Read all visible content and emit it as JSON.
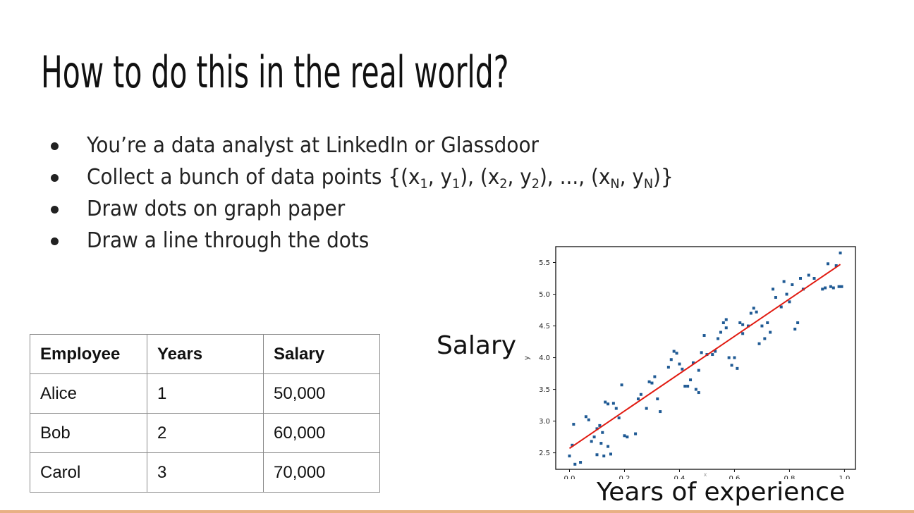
{
  "title": "How to do this in the real world?",
  "bullets": [
    {
      "text": "You’re a data analyst at LinkedIn or Glassdoor"
    },
    {
      "prefix": "Collect a bunch of data points {(x",
      "s1": "1",
      "m1": ", y",
      "s2": "1",
      "m2": "), (x",
      "s3": "2",
      "m3": ", y",
      "s4": "2",
      "m4": "), ..., (x",
      "s5": "N",
      "m5": ", y",
      "s6": "N",
      "suffix": ")}"
    },
    {
      "text": "Draw dots on graph paper"
    },
    {
      "text": "Draw a line through the dots"
    }
  ],
  "table": {
    "headers": [
      "Employee",
      "Years",
      "Salary"
    ],
    "rows": [
      [
        "Alice",
        "1",
        "50,000"
      ],
      [
        "Bob",
        "2",
        "60,000"
      ],
      [
        "Carol",
        "3",
        "70,000"
      ]
    ]
  },
  "salary_label": "Salary",
  "experience_label": "Years of experience",
  "chart_data": {
    "type": "scatter",
    "xlabel": "x",
    "ylabel": "y",
    "xlim": [
      -0.05,
      1.04
    ],
    "ylim": [
      2.24,
      5.75
    ],
    "xticks": [
      "0.0",
      "0.2",
      "0.4",
      "0.6",
      "0.8",
      "1.0"
    ],
    "yticks": [
      "2.5",
      "3.0",
      "3.5",
      "4.0",
      "4.5",
      "5.0",
      "5.5"
    ],
    "grid": false,
    "point_color": "#1f5a94",
    "line_color": "#e11a10",
    "points": [
      [
        0.0,
        2.45
      ],
      [
        0.01,
        2.62
      ],
      [
        0.015,
        2.95
      ],
      [
        0.02,
        2.32
      ],
      [
        0.04,
        2.35
      ],
      [
        0.06,
        3.07
      ],
      [
        0.07,
        3.02
      ],
      [
        0.08,
        2.68
      ],
      [
        0.09,
        2.75
      ],
      [
        0.1,
        2.88
      ],
      [
        0.1,
        2.47
      ],
      [
        0.11,
        2.93
      ],
      [
        0.115,
        2.65
      ],
      [
        0.12,
        2.82
      ],
      [
        0.125,
        2.45
      ],
      [
        0.13,
        3.3
      ],
      [
        0.14,
        3.27
      ],
      [
        0.14,
        2.6
      ],
      [
        0.15,
        2.48
      ],
      [
        0.16,
        3.28
      ],
      [
        0.17,
        3.2
      ],
      [
        0.18,
        3.05
      ],
      [
        0.19,
        3.57
      ],
      [
        0.2,
        2.77
      ],
      [
        0.21,
        2.75
      ],
      [
        0.24,
        2.8
      ],
      [
        0.25,
        3.35
      ],
      [
        0.26,
        3.42
      ],
      [
        0.28,
        3.2
      ],
      [
        0.29,
        3.62
      ],
      [
        0.3,
        3.6
      ],
      [
        0.31,
        3.7
      ],
      [
        0.32,
        3.35
      ],
      [
        0.33,
        3.15
      ],
      [
        0.36,
        3.85
      ],
      [
        0.37,
        3.97
      ],
      [
        0.38,
        4.1
      ],
      [
        0.39,
        4.07
      ],
      [
        0.4,
        3.9
      ],
      [
        0.41,
        3.82
      ],
      [
        0.42,
        3.55
      ],
      [
        0.43,
        3.55
      ],
      [
        0.44,
        3.65
      ],
      [
        0.45,
        3.92
      ],
      [
        0.46,
        3.5
      ],
      [
        0.47,
        3.45
      ],
      [
        0.47,
        3.8
      ],
      [
        0.48,
        4.08
      ],
      [
        0.49,
        4.35
      ],
      [
        0.5,
        4.05
      ],
      [
        0.52,
        4.05
      ],
      [
        0.53,
        4.1
      ],
      [
        0.54,
        4.3
      ],
      [
        0.55,
        4.4
      ],
      [
        0.56,
        4.55
      ],
      [
        0.57,
        4.6
      ],
      [
        0.57,
        4.47
      ],
      [
        0.58,
        4.0
      ],
      [
        0.59,
        3.88
      ],
      [
        0.6,
        4.0
      ],
      [
        0.61,
        3.83
      ],
      [
        0.62,
        4.55
      ],
      [
        0.63,
        4.38
      ],
      [
        0.63,
        4.52
      ],
      [
        0.65,
        4.5
      ],
      [
        0.66,
        4.7
      ],
      [
        0.67,
        4.78
      ],
      [
        0.68,
        4.72
      ],
      [
        0.69,
        4.22
      ],
      [
        0.7,
        4.5
      ],
      [
        0.71,
        4.3
      ],
      [
        0.72,
        4.55
      ],
      [
        0.73,
        4.4
      ],
      [
        0.74,
        5.08
      ],
      [
        0.75,
        4.95
      ],
      [
        0.77,
        4.8
      ],
      [
        0.78,
        5.2
      ],
      [
        0.79,
        5.0
      ],
      [
        0.8,
        4.88
      ],
      [
        0.81,
        5.15
      ],
      [
        0.82,
        4.45
      ],
      [
        0.83,
        4.55
      ],
      [
        0.84,
        5.25
      ],
      [
        0.85,
        5.08
      ],
      [
        0.87,
        5.3
      ],
      [
        0.89,
        5.25
      ],
      [
        0.92,
        5.08
      ],
      [
        0.93,
        5.1
      ],
      [
        0.94,
        5.48
      ],
      [
        0.95,
        5.12
      ],
      [
        0.96,
        5.1
      ],
      [
        0.97,
        5.45
      ],
      [
        0.98,
        5.12
      ],
      [
        0.985,
        5.65
      ],
      [
        0.99,
        5.12
      ]
    ],
    "fit_line": [
      [
        0.0,
        2.57
      ],
      [
        0.985,
        5.47
      ]
    ]
  }
}
